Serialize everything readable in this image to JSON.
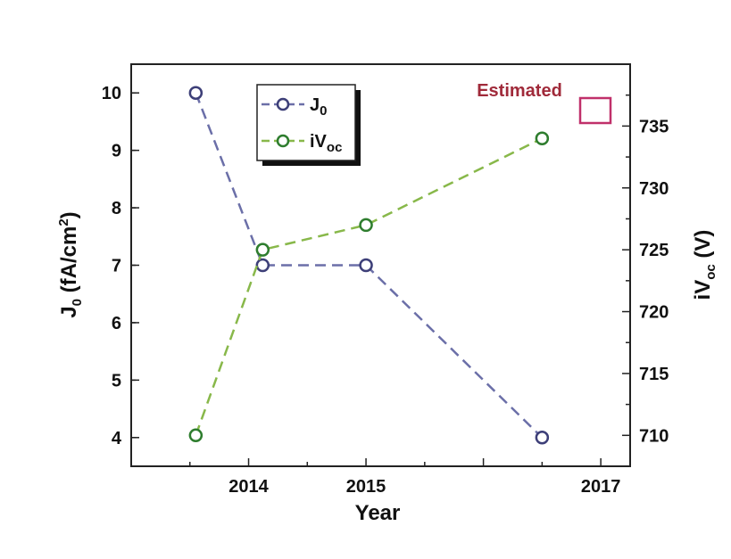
{
  "chart_data": {
    "type": "line",
    "xlabel": "Year",
    "x_ticks": [
      {
        "value": 2014,
        "label": "2014"
      },
      {
        "value": 2015,
        "label": "2015"
      },
      {
        "value": 2017,
        "label": "2017"
      }
    ],
    "xlim": [
      2013.0,
      2017.25
    ],
    "ylabel_left": {
      "base": "J",
      "sub": "0",
      "unit_pre": " (fA/cm",
      "sup": "2",
      "unit_post": ")"
    },
    "ylim_left": [
      3.5,
      10.5
    ],
    "yticks_left": [
      4,
      5,
      6,
      7,
      8,
      9,
      10
    ],
    "ylabel_right": {
      "base": "iV",
      "sub": "oc",
      "unit": " (V)"
    },
    "ylim_right": [
      707.5,
      740
    ],
    "yticks_right": [
      710,
      715,
      720,
      725,
      730,
      735
    ],
    "series": [
      {
        "name": "J0",
        "legend_base": "J",
        "legend_sub": "0",
        "axis": "left",
        "color": "#6b6fa8",
        "marker_color": "#3d3f78",
        "x": [
          2013.55,
          2014.12,
          2015.0,
          2016.5
        ],
        "y": [
          10,
          7,
          7,
          4
        ]
      },
      {
        "name": "iVoc",
        "legend_base": "iV",
        "legend_sub": "oc",
        "axis": "right",
        "color": "#88b84a",
        "marker_color": "#2e7d2e",
        "x": [
          2013.55,
          2014.12,
          2015.0,
          2016.5
        ],
        "y": [
          710,
          725,
          727,
          734
        ]
      }
    ],
    "annotations": [
      {
        "text": "Estimated",
        "color": "#a02a3a",
        "box_color": "#c0306a"
      }
    ],
    "legend_position": "top-left",
    "grid": false
  }
}
